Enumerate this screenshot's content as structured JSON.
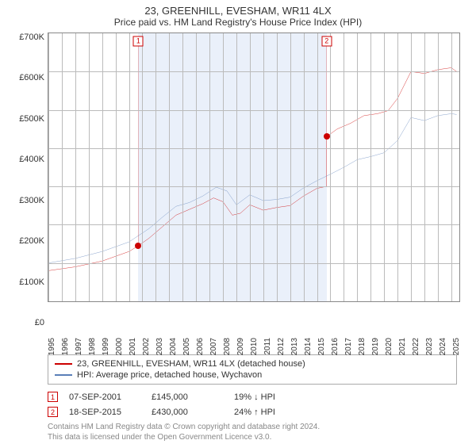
{
  "title": "23, GREENHILL, EVESHAM, WR11 4LX",
  "subtitle": "Price paid vs. HM Land Registry's House Price Index (HPI)",
  "chart": {
    "type": "line",
    "ylim": [
      0,
      700
    ],
    "ytick_step": 100,
    "y_unit_prefix": "£",
    "y_unit_suffix": "K",
    "x_years": [
      1995,
      1996,
      1997,
      1998,
      1999,
      2000,
      2001,
      2002,
      2003,
      2004,
      2005,
      2006,
      2007,
      2008,
      2009,
      2010,
      2011,
      2012,
      2013,
      2014,
      2015,
      2016,
      2017,
      2018,
      2019,
      2020,
      2021,
      2022,
      2023,
      2024,
      2025
    ],
    "x_range": [
      1995,
      2025.6
    ],
    "band_year_ranges": [
      [
        2001.7,
        2015.72
      ]
    ],
    "background_color": "#ffffff",
    "band_color": "#eaf0fa",
    "grid_color": "#bbbbbb",
    "border_color": "#888888",
    "label_fontsize": 11,
    "xlabel_fontsize": 10,
    "series": [
      {
        "name": "23, GREENHILL, EVESHAM, WR11 4LX (detached house)",
        "color": "#cc0000",
        "line_width": 1.3,
        "points": [
          [
            1995.0,
            80
          ],
          [
            1997.0,
            90
          ],
          [
            1999.0,
            105
          ],
          [
            2001.0,
            130
          ],
          [
            2001.7,
            145
          ],
          [
            2002.5,
            165
          ],
          [
            2003.5,
            195
          ],
          [
            2004.5,
            225
          ],
          [
            2005.5,
            240
          ],
          [
            2006.5,
            255
          ],
          [
            2007.3,
            270
          ],
          [
            2008.0,
            260
          ],
          [
            2008.7,
            225
          ],
          [
            2009.3,
            230
          ],
          [
            2010.0,
            252
          ],
          [
            2011.0,
            238
          ],
          [
            2012.0,
            245
          ],
          [
            2013.0,
            250
          ],
          [
            2014.0,
            275
          ],
          [
            2015.0,
            295
          ],
          [
            2015.7,
            300
          ],
          [
            2015.72,
            430
          ],
          [
            2016.5,
            450
          ],
          [
            2017.5,
            465
          ],
          [
            2018.5,
            485
          ],
          [
            2019.5,
            490
          ],
          [
            2020.3,
            498
          ],
          [
            2021.0,
            530
          ],
          [
            2022.0,
            600
          ],
          [
            2023.0,
            595
          ],
          [
            2024.0,
            605
          ],
          [
            2025.0,
            610
          ],
          [
            2025.4,
            600
          ]
        ]
      },
      {
        "name": "HPI: Average price, detached house, Wychavon",
        "color": "#5a7fb8",
        "line_width": 1.2,
        "points": [
          [
            1995.0,
            100
          ],
          [
            1997.0,
            112
          ],
          [
            1999.0,
            130
          ],
          [
            2001.0,
            155
          ],
          [
            2002.5,
            190
          ],
          [
            2003.5,
            220
          ],
          [
            2004.5,
            248
          ],
          [
            2005.5,
            258
          ],
          [
            2006.5,
            275
          ],
          [
            2007.5,
            298
          ],
          [
            2008.3,
            288
          ],
          [
            2009.0,
            252
          ],
          [
            2010.0,
            278
          ],
          [
            2011.0,
            263
          ],
          [
            2012.0,
            266
          ],
          [
            2013.0,
            272
          ],
          [
            2014.0,
            296
          ],
          [
            2015.0,
            315
          ],
          [
            2016.0,
            332
          ],
          [
            2017.0,
            350
          ],
          [
            2018.0,
            370
          ],
          [
            2019.0,
            378
          ],
          [
            2020.0,
            388
          ],
          [
            2021.0,
            420
          ],
          [
            2022.0,
            480
          ],
          [
            2023.0,
            472
          ],
          [
            2024.0,
            485
          ],
          [
            2025.0,
            490
          ],
          [
            2025.4,
            488
          ]
        ]
      }
    ],
    "event_markers": [
      {
        "label": "1",
        "x": 2001.7,
        "box_y": 680,
        "dot_y": 145
      },
      {
        "label": "2",
        "x": 2015.72,
        "box_y": 680,
        "dot_y": 430
      }
    ]
  },
  "legend": {
    "items": [
      {
        "color": "#cc0000",
        "label": "23, GREENHILL, EVESHAM, WR11 4LX (detached house)"
      },
      {
        "color": "#5a7fb8",
        "label": "HPI: Average price, detached house, Wychavon"
      }
    ]
  },
  "events": [
    {
      "marker": "1",
      "date": "07-SEP-2001",
      "price": "£145,000",
      "delta": "19% ↓ HPI"
    },
    {
      "marker": "2",
      "date": "18-SEP-2015",
      "price": "£430,000",
      "delta": "24% ↑ HPI"
    }
  ],
  "footnote_line1": "Contains HM Land Registry data © Crown copyright and database right 2024.",
  "footnote_line2": "This data is licensed under the Open Government Licence v3.0."
}
